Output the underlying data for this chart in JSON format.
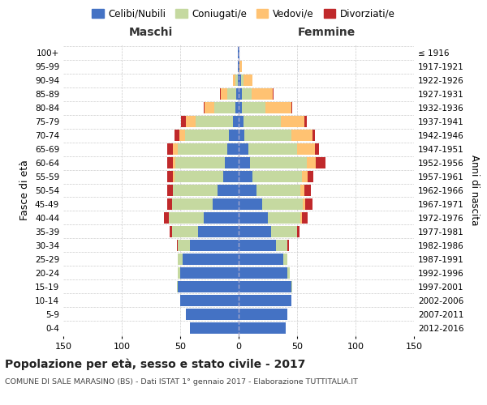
{
  "age_groups": [
    "0-4",
    "5-9",
    "10-14",
    "15-19",
    "20-24",
    "25-29",
    "30-34",
    "35-39",
    "40-44",
    "45-49",
    "50-54",
    "55-59",
    "60-64",
    "65-69",
    "70-74",
    "75-79",
    "80-84",
    "85-89",
    "90-94",
    "95-99",
    "100+"
  ],
  "birth_years": [
    "2012-2016",
    "2007-2011",
    "2002-2006",
    "1997-2001",
    "1992-1996",
    "1987-1991",
    "1982-1986",
    "1977-1981",
    "1972-1976",
    "1967-1971",
    "1962-1966",
    "1957-1961",
    "1952-1956",
    "1947-1951",
    "1942-1946",
    "1937-1941",
    "1932-1936",
    "1927-1931",
    "1922-1926",
    "1917-1921",
    "≤ 1916"
  ],
  "male_celibe": [
    42,
    45,
    50,
    52,
    50,
    48,
    42,
    35,
    30,
    22,
    18,
    13,
    12,
    10,
    8,
    5,
    3,
    2,
    1,
    1,
    1
  ],
  "male_coniugato": [
    0,
    0,
    0,
    1,
    2,
    4,
    10,
    22,
    30,
    35,
    38,
    42,
    42,
    42,
    38,
    32,
    18,
    8,
    2,
    0,
    0
  ],
  "male_vedovo": [
    0,
    0,
    0,
    0,
    0,
    0,
    0,
    0,
    0,
    0,
    0,
    1,
    2,
    4,
    5,
    8,
    8,
    5,
    2,
    0,
    0
  ],
  "male_divorziato": [
    0,
    0,
    0,
    0,
    0,
    0,
    1,
    2,
    4,
    4,
    5,
    5,
    5,
    5,
    4,
    4,
    1,
    1,
    0,
    0,
    0
  ],
  "female_nubile": [
    40,
    42,
    45,
    45,
    42,
    38,
    32,
    28,
    25,
    20,
    15,
    12,
    10,
    8,
    5,
    4,
    3,
    3,
    2,
    1,
    1
  ],
  "female_coniugata": [
    0,
    0,
    0,
    1,
    2,
    4,
    10,
    22,
    28,
    35,
    38,
    42,
    48,
    42,
    40,
    32,
    20,
    8,
    2,
    0,
    0
  ],
  "female_vedova": [
    0,
    0,
    0,
    0,
    0,
    0,
    0,
    0,
    1,
    2,
    3,
    5,
    8,
    15,
    18,
    20,
    22,
    18,
    8,
    2,
    0
  ],
  "female_divorziata": [
    0,
    0,
    0,
    0,
    0,
    0,
    1,
    2,
    5,
    6,
    6,
    5,
    8,
    4,
    2,
    2,
    1,
    1,
    0,
    0,
    0
  ],
  "colors": {
    "celibe": "#4472C4",
    "coniugato": "#c5d9a0",
    "vedovo": "#ffc272",
    "divorziato": "#c0292b"
  },
  "xlim": 150,
  "title": "Popolazione per età, sesso e stato civile - 2017",
  "subtitle": "COMUNE DI SALE MARASINO (BS) - Dati ISTAT 1° gennaio 2017 - Elaborazione TUTTITALIA.IT",
  "ylabel": "Fasce di età",
  "ylabel_right": "Anni di nascita",
  "label_maschi": "Maschi",
  "label_femmine": "Femmine",
  "legend_labels": [
    "Celibi/Nubili",
    "Coniugati/e",
    "Vedovi/e",
    "Divorziati/e"
  ],
  "bg_color": "#ffffff",
  "grid_color": "#cccccc"
}
